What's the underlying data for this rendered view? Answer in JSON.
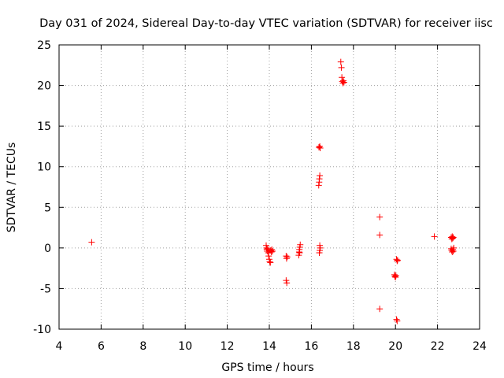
{
  "chart_data": {
    "type": "scatter",
    "title": "Day 031 of 2024, Sidereal Day-to-day VTEC variation (SDTVAR) for receiver iisc",
    "xlabel": "GPS time / hours",
    "ylabel": "SDTVAR / TECUs",
    "xlim": [
      4,
      24
    ],
    "ylim": [
      -10,
      25
    ],
    "xticks": [
      4,
      6,
      8,
      10,
      12,
      14,
      16,
      18,
      20,
      22,
      24
    ],
    "yticks": [
      -10,
      -5,
      0,
      5,
      10,
      15,
      20,
      25
    ],
    "grid": true,
    "marker": "+",
    "series": [
      {
        "name": "SDTVAR",
        "color": "#ff0000",
        "points": [
          [
            5.55,
            0.7
          ],
          [
            13.85,
            0.3
          ],
          [
            13.87,
            0.0
          ],
          [
            13.88,
            -0.2
          ],
          [
            13.9,
            -0.4
          ],
          [
            13.92,
            -0.1
          ],
          [
            13.95,
            -0.6
          ],
          [
            13.97,
            -1.0
          ],
          [
            14.0,
            -1.4
          ],
          [
            14.02,
            -1.7
          ],
          [
            14.05,
            -1.8
          ],
          [
            14.07,
            -0.3
          ],
          [
            14.1,
            -0.5
          ],
          [
            14.12,
            -0.2
          ],
          [
            14.15,
            -0.4
          ],
          [
            14.8,
            -1.0
          ],
          [
            14.82,
            -1.3
          ],
          [
            14.85,
            -1.1
          ],
          [
            14.8,
            -4.0
          ],
          [
            14.83,
            -4.3
          ],
          [
            15.4,
            -0.9
          ],
          [
            15.42,
            -0.5
          ],
          [
            15.43,
            -0.2
          ],
          [
            15.45,
            0.1
          ],
          [
            15.47,
            0.4
          ],
          [
            15.44,
            -0.6
          ],
          [
            16.35,
            7.7
          ],
          [
            16.37,
            8.1
          ],
          [
            16.38,
            8.5
          ],
          [
            16.4,
            8.9
          ],
          [
            16.36,
            12.4
          ],
          [
            16.4,
            12.5
          ],
          [
            16.42,
            12.3
          ],
          [
            16.38,
            -0.6
          ],
          [
            16.4,
            -0.3
          ],
          [
            16.42,
            0.0
          ],
          [
            16.4,
            0.3
          ],
          [
            17.4,
            22.9
          ],
          [
            17.43,
            22.2
          ],
          [
            17.45,
            21.0
          ],
          [
            17.47,
            20.5
          ],
          [
            17.5,
            20.3
          ],
          [
            17.52,
            20.6
          ],
          [
            17.55,
            20.4
          ],
          [
            19.25,
            3.8
          ],
          [
            19.25,
            1.6
          ],
          [
            19.25,
            -7.5
          ],
          [
            19.95,
            -3.3
          ],
          [
            19.97,
            -3.5
          ],
          [
            20.0,
            -3.6
          ],
          [
            20.02,
            -3.4
          ],
          [
            20.05,
            -1.4
          ],
          [
            20.08,
            -1.6
          ],
          [
            20.1,
            -1.5
          ],
          [
            20.05,
            -8.8
          ],
          [
            20.08,
            -9.0
          ],
          [
            21.85,
            1.4
          ],
          [
            22.65,
            1.3
          ],
          [
            22.68,
            1.1
          ],
          [
            22.7,
            1.4
          ],
          [
            22.72,
            1.2
          ],
          [
            22.75,
            1.3
          ],
          [
            22.65,
            -0.1
          ],
          [
            22.67,
            -0.3
          ],
          [
            22.7,
            -0.5
          ],
          [
            22.73,
            -0.2
          ],
          [
            22.75,
            -0.4
          ],
          [
            22.77,
            0.0
          ]
        ]
      }
    ]
  }
}
